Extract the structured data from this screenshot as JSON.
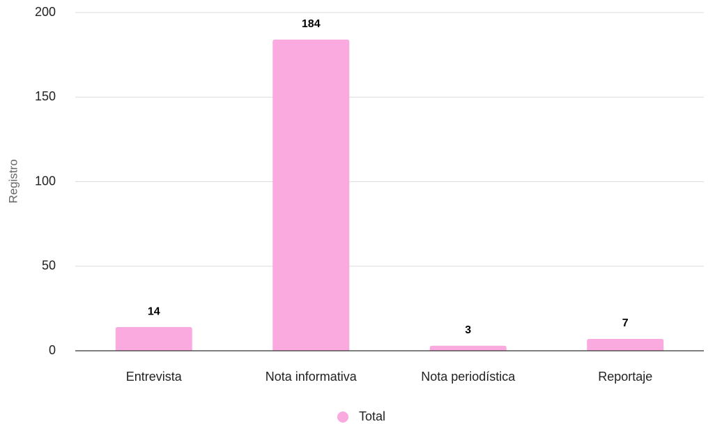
{
  "chart_data": {
    "type": "bar",
    "y_label": "Registro",
    "categories": [
      "Entrevista",
      "Nota informativa",
      "Nota periodística",
      "Reportaje"
    ],
    "series": [
      {
        "name": "Total",
        "color": "#fbaadf",
        "values": [
          14,
          184,
          3,
          7
        ]
      }
    ],
    "ylim": [
      0,
      200
    ],
    "yticks": [
      0,
      50,
      100,
      150,
      200
    ],
    "grid": true,
    "legend": "bottom"
  }
}
